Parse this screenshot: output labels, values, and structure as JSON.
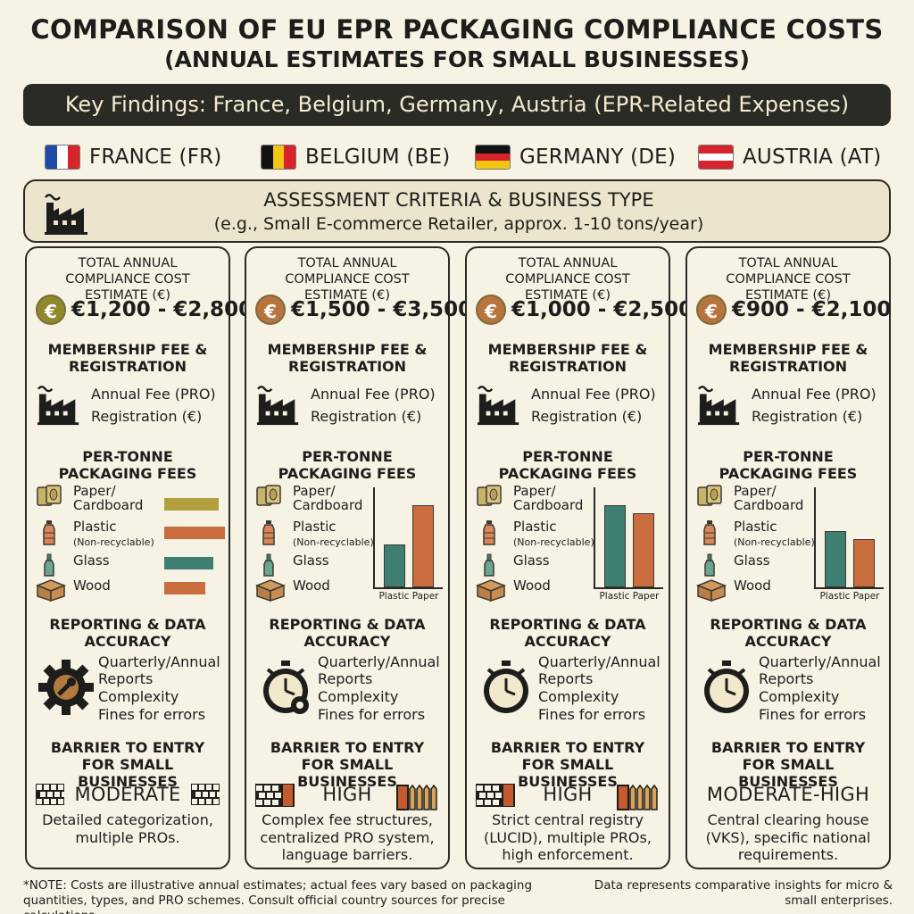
{
  "header": {
    "title": "COMPARISON OF EU EPR PACKAGING COMPLIANCE COSTS",
    "subtitle": "(ANNUAL ESTIMATES FOR SMALL BUSINESSES)",
    "banner": "Key Findings: France, Belgium, Germany, Austria (EPR-Related Expenses)"
  },
  "countries": [
    {
      "label": "FRANCE (FR)",
      "flag_colors": [
        "#1f4aa8",
        "#ffffff",
        "#d8232a"
      ]
    },
    {
      "label": "BELGIUM (BE)",
      "flag_colors": [
        "#111111",
        "#f3c612",
        "#d9232a"
      ]
    },
    {
      "label": "GERMANY (DE)",
      "flag_colors": [
        "#111111",
        "#d9232a",
        "#f3c612"
      ]
    },
    {
      "label": "AUSTRIA (AT)",
      "flag_colors": [
        "#d9232a",
        "#ffffff",
        "#d9232a"
      ]
    }
  ],
  "criteria": {
    "title": "ASSESSMENT CRITERIA & BUSINESS TYPE",
    "subtitle": "(e.g., Small E-commerce Retailer, approx. 1-10 tons/year)"
  },
  "section_labels": {
    "total_cost": "TOTAL ANNUAL COMPLIANCE COST ESTIMATE (€)",
    "membership": "MEMBERSHIP FEE & REGISTRATION",
    "annual_fee": "Annual Fee (PRO)",
    "registration": "Registration (€)",
    "per_tonne": "PER-TONNE PACKAGING FEES",
    "reporting": "REPORTING & DATA ACCURACY",
    "rep_1": "Quarterly/Annual",
    "rep_2": "Reports",
    "rep_3": "Complexity",
    "rep_4": "Fines for errors",
    "barrier": "BARRIER TO ENTRY FOR SMALL BUSINESSES",
    "chart_x_labels": "Plastic Paper"
  },
  "materials": [
    {
      "label": "Paper/ Cardboard",
      "icon": "paper-roll-icon"
    },
    {
      "label": "Plastic",
      "sub": "(Non-recyclable)",
      "icon": "plastic-bottle-icon"
    },
    {
      "label": "Glass",
      "icon": "glass-bottle-icon"
    },
    {
      "label": "Wood",
      "icon": "wood-crate-icon"
    }
  ],
  "colors": {
    "paper": "#b2a03e",
    "plastic": "#c96d3f",
    "glass": "#3f7e72",
    "wood": "#c96d3f",
    "dark": "#2b2b26"
  },
  "columns": [
    {
      "cost": "€1,200 - €2,800",
      "coin_color": "#8e8a2c",
      "per_tonne_bars": [
        0.55,
        0.62,
        0.5,
        0.42
      ],
      "vertical_bars": null,
      "reporting_icon": "gear-wrench-icon",
      "barrier_level": "MODERATE",
      "barrier_desc": "Detailed categorization, multiple PROs."
    },
    {
      "cost": "€1,500 - €3,500",
      "coin_color": "#b8743c",
      "per_tonne_bars": null,
      "vertical_bars": {
        "plastic": 0.52,
        "paper": 1.0
      },
      "reporting_icon": "stopwatch-gear-icon",
      "barrier_level": "HIGH",
      "barrier_desc": "Complex fee structures, centralized PRO system, language barriers."
    },
    {
      "cost": "€1,000 - €2,500",
      "coin_color": "#b8743c",
      "per_tonne_bars": null,
      "vertical_bars": {
        "plastic": 1.0,
        "paper": 0.9
      },
      "reporting_icon": "stopwatch-icon",
      "barrier_level": "HIGH",
      "barrier_desc": "Strict central registry (LUCID), multiple PROs, high enforcement."
    },
    {
      "cost": "€900 - €2,100",
      "coin_color": "#b8743c",
      "per_tonne_bars": null,
      "vertical_bars": {
        "plastic": 0.68,
        "paper": 0.59
      },
      "reporting_icon": "stopwatch-icon",
      "barrier_level": "MODERATE-HIGH",
      "barrier_desc": "Central clearing house (VKS), specific national requirements."
    }
  ],
  "footer": {
    "note_left": "*NOTE: Costs are illustrative annual estimates; actual fees vary based on packaging quantities, types, and PRO schemes. Consult official country sources for precise calculations.",
    "note_right": "Data represents comparative insights for micro & small enterprises."
  }
}
